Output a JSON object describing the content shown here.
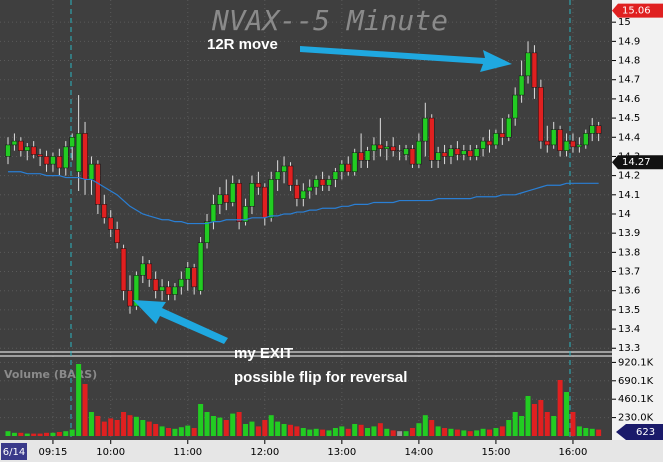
{
  "chart_data": {
    "type": "candlestick",
    "title": "NVAX--5 Minute",
    "volume_title": "Volume (BARS)",
    "date_label": "6/14",
    "annotations": [
      "12R move",
      "my EXIT",
      "possible flip for reversal"
    ],
    "volume_tag": "623",
    "price_tags": [
      {
        "value": 15.06,
        "color": "#e02020"
      },
      {
        "value": 14.27,
        "color": "#111111"
      }
    ],
    "up_color": "#22cc22",
    "down_color": "#e02020",
    "flat_color": "#9a9a9a",
    "ma_color": "#2a7fd4",
    "open": [
      14.3,
      14.36,
      14.38,
      14.33,
      14.35,
      14.31,
      14.3,
      14.26,
      14.3,
      14.24,
      14.35,
      14.22,
      14.42,
      14.18,
      14.26,
      14.05,
      13.98,
      13.92,
      13.82,
      13.6,
      13.52,
      13.68,
      13.74,
      13.66,
      13.6,
      13.62,
      13.58,
      13.62,
      13.66,
      13.72,
      13.6,
      13.85,
      13.96,
      14.05,
      14.1,
      14.06,
      14.16,
      13.96,
      14.04,
      14.16,
      14.14,
      13.98,
      14.18,
      14.22,
      14.25,
      14.15,
      14.08,
      14.12,
      14.14,
      14.18,
      14.15,
      14.18,
      14.22,
      14.26,
      14.22,
      14.32,
      14.28,
      14.33,
      14.36,
      14.34,
      14.35,
      14.33,
      14.31,
      14.34,
      14.26,
      14.38,
      14.5,
      14.28,
      14.32,
      14.3,
      14.34,
      14.31,
      14.33,
      14.3,
      14.34,
      14.38,
      14.36,
      14.42,
      14.4,
      14.5,
      14.62,
      14.72,
      14.84,
      14.66,
      14.38,
      14.36,
      14.44,
      14.33,
      14.38,
      14.35,
      14.36,
      14.42,
      14.46
    ],
    "high": [
      14.4,
      14.42,
      14.4,
      14.37,
      14.38,
      14.34,
      14.33,
      14.32,
      14.34,
      14.38,
      14.42,
      14.62,
      14.48,
      14.3,
      14.28,
      14.1,
      14.02,
      13.96,
      13.84,
      13.68,
      13.7,
      13.78,
      13.76,
      13.7,
      13.66,
      13.65,
      13.64,
      13.7,
      13.75,
      13.74,
      13.88,
      14.0,
      14.1,
      14.14,
      14.18,
      14.2,
      14.18,
      14.08,
      14.2,
      14.22,
      14.16,
      14.22,
      14.28,
      14.3,
      14.27,
      14.18,
      14.16,
      14.18,
      14.2,
      14.22,
      14.2,
      14.24,
      14.28,
      14.3,
      14.34,
      14.42,
      14.35,
      14.4,
      14.5,
      14.38,
      14.4,
      14.36,
      14.36,
      14.36,
      14.42,
      14.58,
      14.52,
      14.35,
      14.36,
      14.36,
      14.38,
      14.36,
      14.36,
      14.36,
      14.4,
      14.44,
      14.44,
      14.5,
      14.52,
      14.66,
      14.8,
      14.9,
      14.88,
      14.7,
      14.46,
      14.48,
      14.46,
      14.42,
      14.42,
      14.4,
      14.44,
      14.5,
      14.48
    ],
    "low": [
      14.26,
      14.33,
      14.3,
      14.28,
      14.29,
      14.25,
      14.22,
      14.22,
      14.2,
      14.2,
      14.28,
      14.12,
      14.1,
      14.1,
      14.0,
      13.95,
      13.88,
      13.82,
      13.55,
      13.48,
      13.5,
      13.64,
      13.62,
      13.56,
      13.55,
      13.55,
      13.55,
      13.58,
      13.6,
      13.58,
      13.58,
      13.82,
      13.92,
      14.0,
      14.02,
      14.04,
      13.92,
      13.94,
      14.0,
      14.1,
      13.94,
      13.96,
      14.12,
      14.16,
      14.12,
      14.04,
      14.04,
      14.08,
      14.1,
      14.12,
      14.12,
      14.14,
      14.18,
      14.2,
      14.2,
      14.24,
      14.24,
      14.28,
      14.3,
      14.28,
      14.3,
      14.28,
      14.28,
      14.24,
      14.24,
      14.3,
      14.24,
      14.24,
      14.26,
      14.26,
      14.28,
      14.28,
      14.28,
      14.28,
      14.3,
      14.32,
      14.34,
      14.36,
      14.38,
      14.46,
      14.58,
      14.68,
      14.6,
      14.34,
      14.32,
      14.34,
      14.3,
      14.3,
      14.32,
      14.32,
      14.34,
      14.38,
      14.38
    ],
    "close": [
      14.36,
      14.38,
      14.33,
      14.35,
      14.31,
      14.3,
      14.26,
      14.3,
      14.24,
      14.35,
      14.4,
      14.42,
      14.18,
      14.26,
      14.05,
      13.98,
      13.92,
      13.85,
      13.6,
      13.52,
      13.68,
      13.74,
      13.66,
      13.6,
      13.62,
      13.58,
      13.62,
      13.66,
      13.72,
      13.62,
      13.85,
      13.96,
      14.05,
      14.1,
      14.06,
      14.16,
      13.96,
      14.04,
      14.16,
      14.14,
      13.98,
      14.18,
      14.22,
      14.25,
      14.15,
      14.08,
      14.12,
      14.14,
      14.18,
      14.15,
      14.18,
      14.22,
      14.26,
      14.22,
      14.32,
      14.28,
      14.33,
      14.36,
      14.34,
      14.35,
      14.33,
      14.33,
      14.34,
      14.26,
      14.38,
      14.5,
      14.28,
      14.32,
      14.3,
      14.34,
      14.31,
      14.33,
      14.3,
      14.34,
      14.38,
      14.36,
      14.42,
      14.4,
      14.5,
      14.62,
      14.72,
      14.84,
      14.66,
      14.38,
      14.36,
      14.44,
      14.33,
      14.38,
      14.35,
      14.36,
      14.42,
      14.46,
      14.42
    ],
    "volume": [
      60000,
      40000,
      40000,
      30000,
      30000,
      30000,
      40000,
      40000,
      50000,
      60000,
      80000,
      900000,
      650000,
      300000,
      250000,
      180000,
      220000,
      200000,
      300000,
      260000,
      240000,
      200000,
      180000,
      150000,
      120000,
      100000,
      90000,
      110000,
      130000,
      100000,
      400000,
      300000,
      250000,
      230000,
      200000,
      280000,
      300000,
      150000,
      180000,
      120000,
      200000,
      260000,
      180000,
      150000,
      140000,
      120000,
      100000,
      80000,
      90000,
      80000,
      70000,
      100000,
      120000,
      90000,
      150000,
      140000,
      100000,
      120000,
      160000,
      90000,
      70000,
      60000,
      60000,
      100000,
      160000,
      260000,
      200000,
      120000,
      100000,
      90000,
      80000,
      70000,
      60000,
      70000,
      90000,
      80000,
      100000,
      120000,
      200000,
      300000,
      250000,
      500000,
      400000,
      450000,
      300000,
      250000,
      700000,
      550000,
      300000,
      120000,
      100000,
      90000,
      80000
    ],
    "ma": [
      14.22,
      14.22,
      14.22,
      14.21,
      14.21,
      14.21,
      14.2,
      14.2,
      14.2,
      14.19,
      14.19,
      14.19,
      14.18,
      14.18,
      14.16,
      14.14,
      14.12,
      14.1,
      14.07,
      14.04,
      14.02,
      14.0,
      13.99,
      13.98,
      13.97,
      13.97,
      13.96,
      13.96,
      13.95,
      13.95,
      13.95,
      13.95,
      13.96,
      13.96,
      13.97,
      13.97,
      13.97,
      13.97,
      13.98,
      13.98,
      13.98,
      13.99,
      13.99,
      14.0,
      14.0,
      14.01,
      14.01,
      14.02,
      14.02,
      14.03,
      14.03,
      14.03,
      14.04,
      14.04,
      14.05,
      14.05,
      14.05,
      14.06,
      14.06,
      14.06,
      14.06,
      14.07,
      14.07,
      14.07,
      14.07,
      14.07,
      14.07,
      14.08,
      14.08,
      14.08,
      14.08,
      14.08,
      14.08,
      14.09,
      14.09,
      14.09,
      14.09,
      14.1,
      14.1,
      14.1,
      14.11,
      14.12,
      14.13,
      14.14,
      14.15,
      14.15,
      14.15,
      14.16,
      14.16,
      14.16,
      14.16,
      14.16,
      14.16
    ],
    "ylim": [
      13.27,
      15.1
    ],
    "yticks": [
      13.3,
      13.4,
      13.5,
      13.6,
      13.7,
      13.8,
      13.9,
      14,
      14.1,
      14.2,
      14.3,
      14.4,
      14.5,
      14.6,
      14.7,
      14.8,
      14.9,
      15
    ],
    "vlim": [
      0,
      1000000
    ],
    "vticks": [
      {
        "value": 230000,
        "label": "230.0K"
      },
      {
        "value": 460100,
        "label": "460.1K"
      },
      {
        "value": 690100,
        "label": "690.1K"
      },
      {
        "value": 920100,
        "label": "920.1K"
      }
    ],
    "xticks": [
      {
        "value": 7,
        "label": "09:15"
      },
      {
        "value": 16,
        "label": "10:00"
      },
      {
        "value": 28,
        "label": "11:00"
      },
      {
        "value": 40,
        "label": "12:00"
      },
      {
        "value": 52,
        "label": "13:00"
      },
      {
        "value": 64,
        "label": "14:00"
      },
      {
        "value": 76,
        "label": "15:00"
      },
      {
        "value": 88,
        "label": "16:00"
      }
    ],
    "grid": true
  }
}
